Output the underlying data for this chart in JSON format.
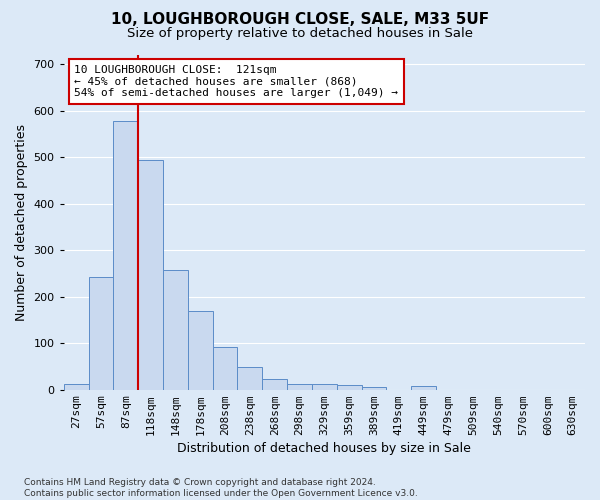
{
  "title1": "10, LOUGHBOROUGH CLOSE, SALE, M33 5UF",
  "title2": "Size of property relative to detached houses in Sale",
  "xlabel": "Distribution of detached houses by size in Sale",
  "ylabel": "Number of detached properties",
  "bar_labels": [
    "27sqm",
    "57sqm",
    "87sqm",
    "118sqm",
    "148sqm",
    "178sqm",
    "208sqm",
    "238sqm",
    "268sqm",
    "298sqm",
    "329sqm",
    "359sqm",
    "389sqm",
    "419sqm",
    "449sqm",
    "479sqm",
    "509sqm",
    "540sqm",
    "570sqm",
    "600sqm",
    "630sqm"
  ],
  "bar_values": [
    13,
    243,
    578,
    495,
    258,
    170,
    92,
    48,
    24,
    13,
    12,
    10,
    6,
    0,
    8,
    0,
    0,
    0,
    0,
    0,
    0
  ],
  "bar_color": "#c9d9ef",
  "bar_edge_color": "#5b8cc8",
  "background_color": "#dce9f7",
  "grid_color": "#ffffff",
  "annotation_text_line1": "10 LOUGHBOROUGH CLOSE:  121sqm",
  "annotation_text_line2": "← 45% of detached houses are smaller (868)",
  "annotation_text_line3": "54% of semi-detached houses are larger (1,049) →",
  "annotation_box_color": "#ffffff",
  "annotation_box_edge": "#cc0000",
  "vline_color": "#cc0000",
  "vline_x_index": 2.5,
  "ylim": [
    0,
    720
  ],
  "yticks": [
    0,
    100,
    200,
    300,
    400,
    500,
    600,
    700
  ],
  "footnote": "Contains HM Land Registry data © Crown copyright and database right 2024.\nContains public sector information licensed under the Open Government Licence v3.0.",
  "title1_fontsize": 11,
  "title2_fontsize": 9.5,
  "xlabel_fontsize": 9,
  "ylabel_fontsize": 9,
  "annotation_fontsize": 8,
  "tick_fontsize": 8,
  "footnote_fontsize": 6.5
}
